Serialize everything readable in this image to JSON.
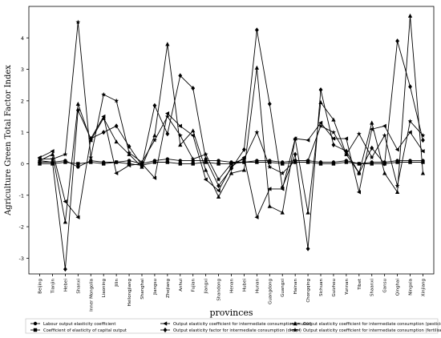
{
  "chart_data": {
    "type": "line",
    "xlabel": "provinces",
    "ylabel": "Agriculture Green Total Factor Index",
    "ylim": [
      -3.5,
      5.0
    ],
    "yticks": [
      -3,
      -2,
      -1,
      0,
      1,
      2,
      3,
      4
    ],
    "grid": false,
    "legend_position": "bottom",
    "categories": [
      "Beijing",
      "Tianjin",
      "Hebei",
      "Shanxi",
      "Inner Mongolia",
      "Liaoning",
      "Jilin",
      "Heilongjiang",
      "Shanghai",
      "Jiangsu",
      "Zhejiang",
      "Anhui",
      "Fujian",
      "Jiangxi",
      "Shandong",
      "Henan",
      "Hubei",
      "Hunan",
      "Guangdong",
      "Guangxi",
      "Hainan",
      "Chongqing",
      "Sichuan",
      "Guizhou",
      "Yunnan",
      "Tibet",
      "Shaanxi",
      "Gansu",
      "Qinghai",
      "Ningxia",
      "Xinjiang"
    ],
    "series": [
      {
        "name": "Labour output elasticity coefficient",
        "color": "#000000",
        "marker": "circle",
        "values": [
          0.05,
          0.05,
          0.1,
          -0.1,
          0.1,
          0.05,
          0.05,
          0.1,
          0.0,
          0.1,
          0.15,
          0.1,
          0.1,
          0.1,
          0.1,
          0.05,
          0.05,
          0.1,
          0.1,
          0.05,
          0.1,
          0.1,
          0.05,
          0.05,
          0.1,
          0.0,
          0.05,
          0.05,
          0.1,
          0.1,
          0.1
        ]
      },
      {
        "name": "Coefficient of elasticity of capital output",
        "color": "#000000",
        "marker": "square",
        "values": [
          0.0,
          0.0,
          0.05,
          0.0,
          0.05,
          0.0,
          0.05,
          0.0,
          -0.05,
          0.05,
          0.05,
          0.0,
          0.0,
          0.05,
          0.0,
          0.0,
          0.05,
          0.05,
          0.05,
          0.0,
          0.05,
          0.05,
          0.0,
          0.0,
          0.05,
          0.0,
          0.0,
          0.0,
          0.05,
          0.05,
          0.05
        ]
      },
      {
        "name": "Output elasticity coefficient for intermediate consumption (mulch)",
        "color": "#000000",
        "marker": "triangle-left",
        "values": [
          0.2,
          0.4,
          -1.2,
          -1.7,
          0.8,
          1.5,
          -0.3,
          -0.05,
          0.0,
          -0.45,
          1.6,
          1.2,
          0.9,
          -0.5,
          -0.85,
          -0.1,
          0.2,
          -1.7,
          -0.8,
          -0.8,
          0.8,
          0.75,
          1.3,
          0.8,
          0.8,
          -0.9,
          1.1,
          1.2,
          0.45,
          1.0,
          0.4
        ]
      },
      {
        "name": "Output elasticity factor for intermediate consumption (diesel)",
        "color": "#000000",
        "marker": "diamond",
        "values": [
          0.1,
          0.05,
          -3.35,
          1.7,
          0.8,
          1.0,
          1.2,
          0.55,
          -0.05,
          1.85,
          0.95,
          2.8,
          2.4,
          0.15,
          -0.7,
          -0.15,
          0.45,
          4.25,
          1.9,
          -0.75,
          0.3,
          -2.7,
          2.35,
          0.6,
          0.4,
          -0.3,
          0.5,
          0.0,
          3.9,
          2.45,
          0.75
        ]
      },
      {
        "name": "Output elasticity coefficient for intermediate consumption (pesticides)",
        "color": "#000000",
        "marker": "triangle-up",
        "values": [
          0.1,
          0.3,
          -1.85,
          1.9,
          0.75,
          1.45,
          0.7,
          0.3,
          -0.1,
          0.9,
          3.8,
          0.6,
          1.05,
          -0.2,
          -1.05,
          -0.3,
          -0.2,
          3.05,
          -1.35,
          -1.55,
          0.8,
          -1.55,
          1.95,
          1.4,
          0.3,
          -0.3,
          1.3,
          -0.3,
          -0.9,
          4.7,
          -0.3
        ]
      },
      {
        "name": "Output elasticity coefficient for intermediate consumption (fertiliser)",
        "color": "#000000",
        "marker": "star",
        "values": [
          0.15,
          0.15,
          0.3,
          4.5,
          0.2,
          2.2,
          2.0,
          0.35,
          0.05,
          0.75,
          1.5,
          0.9,
          0.15,
          0.3,
          -0.5,
          0.0,
          0.15,
          1.0,
          -0.1,
          -0.3,
          0.1,
          0.1,
          1.2,
          1.0,
          0.3,
          0.95,
          0.2,
          0.9,
          -0.7,
          1.35,
          0.9
        ]
      }
    ]
  }
}
